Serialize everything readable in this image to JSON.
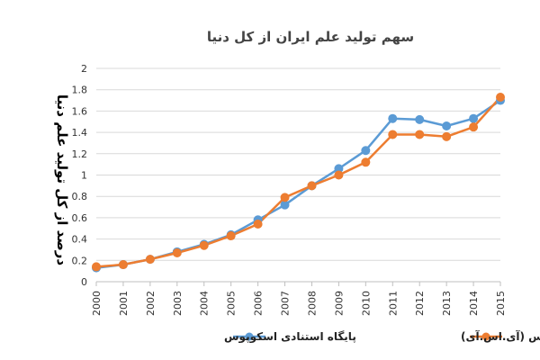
{
  "chart_data": {
    "type": "line",
    "title": "سهم تولید علم ایران از کل دنیا",
    "xlabel": "",
    "ylabel": "درصد از کل تولید علم دنیا",
    "x": [
      "2000",
      "2001",
      "2002",
      "2003",
      "2004",
      "2005",
      "2006",
      "2007",
      "2008",
      "2009",
      "2010",
      "2011",
      "2012",
      "2013",
      "2014",
      "2015"
    ],
    "ylim": [
      0,
      2
    ],
    "yticks": [
      "0",
      "0.2",
      "0.4",
      "0.6",
      "0.8",
      "1",
      "1.2",
      "1.4",
      "1.6",
      "1.8",
      "2"
    ],
    "grid": true,
    "legend_position": "bottom",
    "series": [
      {
        "name": "پایگاه استنادی اسکوپوس",
        "color": "#5b9bd5",
        "values": [
          0.13,
          0.16,
          0.21,
          0.28,
          0.35,
          0.44,
          0.58,
          0.72,
          0.9,
          1.06,
          1.23,
          1.53,
          1.52,
          1.46,
          1.53,
          1.7
        ]
      },
      {
        "name": "پایگاه استنادی وب ساینس (آی.اس.آی)",
        "color": "#ed7d31",
        "values": [
          0.14,
          0.16,
          0.21,
          0.27,
          0.34,
          0.43,
          0.54,
          0.79,
          0.9,
          1.0,
          1.12,
          1.38,
          1.38,
          1.36,
          1.45,
          1.73
        ]
      }
    ]
  }
}
